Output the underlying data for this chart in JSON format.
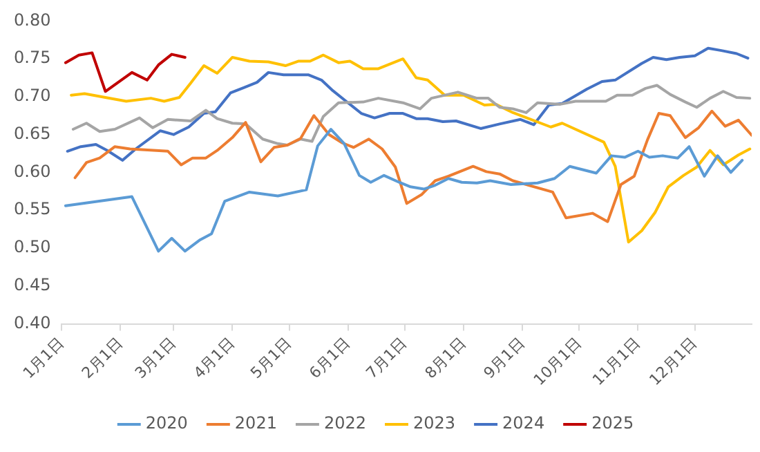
{
  "chart_data": {
    "type": "line",
    "marker": "none",
    "line_style": "solid",
    "grid": false,
    "legend": "bottom",
    "xlim": [
      "--01-01",
      "--12-31"
    ],
    "xticks": [
      {
        "value": "--01-01",
        "label": "1月1日"
      },
      {
        "value": "--02-01",
        "label": "2月1日"
      },
      {
        "value": "--03-01",
        "label": "3月1日"
      },
      {
        "value": "--04-01",
        "label": "4月1日"
      },
      {
        "value": "--05-01",
        "label": "5月1日"
      },
      {
        "value": "--06-01",
        "label": "6月1日"
      },
      {
        "value": "--07-01",
        "label": "7月1日"
      },
      {
        "value": "--08-01",
        "label": "8月1日"
      },
      {
        "value": "--09-01",
        "label": "9月1日"
      },
      {
        "value": "--10-01",
        "label": "10月1日"
      },
      {
        "value": "--11-01",
        "label": "11月1日"
      },
      {
        "value": "--12-01",
        "label": "12月1日"
      }
    ],
    "ylim": [
      0.4,
      0.8
    ],
    "yticks": [
      {
        "value": 0.4,
        "label": "0.40"
      },
      {
        "value": 0.45,
        "label": "0.45"
      },
      {
        "value": 0.5,
        "label": "0.50"
      },
      {
        "value": 0.55,
        "label": "0.55"
      },
      {
        "value": 0.6,
        "label": "0.60"
      },
      {
        "value": 0.65,
        "label": "0.65"
      },
      {
        "value": 0.7,
        "label": "0.70"
      },
      {
        "value": 0.75,
        "label": "0.75"
      },
      {
        "value": 0.8,
        "label": "0.80"
      }
    ],
    "series": [
      {
        "name": "2020",
        "color": "#5b9bd5",
        "x": [
          "--01-03",
          "--02-07",
          "--02-21",
          "--02-28",
          "--03-07",
          "--03-15",
          "--03-21",
          "--03-28",
          "--04-10",
          "--04-25",
          "--05-10",
          "--05-16",
          "--05-23",
          "--05-30",
          "--06-07",
          "--06-13",
          "--06-20",
          "--06-28",
          "--07-04",
          "--07-11",
          "--07-17",
          "--07-24",
          "--07-31",
          "--08-08",
          "--08-15",
          "--08-26",
          "--09-09",
          "--09-18",
          "--09-26",
          "--10-10",
          "--10-18",
          "--10-25",
          "--11-01",
          "--11-07",
          "--11-14",
          "--11-22",
          "--11-28",
          "--12-06",
          "--12-13",
          "--12-20",
          "--12-26"
        ],
        "values": [
          0.556,
          0.568,
          0.496,
          0.513,
          0.496,
          0.511,
          0.519,
          0.562,
          0.574,
          0.569,
          0.577,
          0.635,
          0.657,
          0.638,
          0.596,
          0.587,
          0.596,
          0.587,
          0.581,
          0.578,
          0.583,
          0.592,
          0.587,
          0.586,
          0.589,
          0.584,
          0.586,
          0.592,
          0.608,
          0.599,
          0.622,
          0.62,
          0.628,
          0.62,
          0.622,
          0.619,
          0.634,
          0.595,
          0.622,
          0.6,
          0.616
        ]
      },
      {
        "name": "2021",
        "color": "#ed7d31",
        "x": [
          "--01-08",
          "--01-14",
          "--01-21",
          "--01-29",
          "--02-06",
          "--02-26",
          "--03-05",
          "--03-11",
          "--03-18",
          "--03-24",
          "--04-01",
          "--04-08",
          "--04-16",
          "--04-23",
          "--04-30",
          "--05-07",
          "--05-14",
          "--05-22",
          "--05-29",
          "--06-04",
          "--06-12",
          "--06-19",
          "--06-26",
          "--07-02",
          "--07-10",
          "--07-17",
          "--07-24",
          "--08-06",
          "--08-13",
          "--08-20",
          "--08-27",
          "--09-17",
          "--09-24",
          "--10-08",
          "--10-16",
          "--10-23",
          "--10-30",
          "--11-06",
          "--11-12",
          "--11-18",
          "--11-26",
          "--12-03",
          "--12-10",
          "--12-17",
          "--12-24",
          "--12-31"
        ],
        "values": [
          0.593,
          0.613,
          0.619,
          0.634,
          0.631,
          0.628,
          0.61,
          0.619,
          0.619,
          0.629,
          0.646,
          0.666,
          0.614,
          0.633,
          0.636,
          0.645,
          0.675,
          0.65,
          0.639,
          0.633,
          0.644,
          0.631,
          0.607,
          0.559,
          0.571,
          0.589,
          0.595,
          0.608,
          0.601,
          0.598,
          0.589,
          0.574,
          0.54,
          0.546,
          0.535,
          0.584,
          0.595,
          0.643,
          0.678,
          0.675,
          0.646,
          0.659,
          0.681,
          0.661,
          0.669,
          0.649
        ]
      },
      {
        "name": "2022",
        "color": "#a5a5a5",
        "x": [
          "--01-07",
          "--01-14",
          "--01-21",
          "--01-29",
          "--02-11",
          "--02-18",
          "--02-26",
          "--03-10",
          "--03-18",
          "--03-24",
          "--04-01",
          "--04-08",
          "--04-17",
          "--04-25",
          "--04-30",
          "--05-07",
          "--05-13",
          "--05-19",
          "--05-27",
          "--06-09",
          "--06-17",
          "--06-30",
          "--07-09",
          "--07-15",
          "--07-29",
          "--08-08",
          "--08-14",
          "--08-20",
          "--08-27",
          "--09-03",
          "--09-09",
          "--09-21",
          "--09-29",
          "--10-15",
          "--10-21",
          "--10-29",
          "--11-05",
          "--11-11",
          "--11-18",
          "--11-26",
          "--12-02",
          "--12-09",
          "--12-16",
          "--12-23",
          "--12-30"
        ],
        "values": [
          0.657,
          0.665,
          0.654,
          0.657,
          0.672,
          0.659,
          0.67,
          0.668,
          0.682,
          0.671,
          0.665,
          0.664,
          0.644,
          0.638,
          0.636,
          0.644,
          0.641,
          0.674,
          0.692,
          0.693,
          0.698,
          0.692,
          0.684,
          0.698,
          0.706,
          0.698,
          0.698,
          0.686,
          0.684,
          0.679,
          0.692,
          0.69,
          0.694,
          0.694,
          0.702,
          0.702,
          0.711,
          0.715,
          0.703,
          0.693,
          0.686,
          0.698,
          0.707,
          0.699,
          0.698
        ]
      },
      {
        "name": "2023",
        "color": "#ffc000",
        "x": [
          "--01-06",
          "--01-13",
          "--02-04",
          "--02-17",
          "--02-24",
          "--03-04",
          "--03-10",
          "--03-17",
          "--03-24",
          "--04-01",
          "--04-10",
          "--04-20",
          "--04-29",
          "--05-06",
          "--05-12",
          "--05-19",
          "--05-27",
          "--06-02",
          "--06-09",
          "--06-17",
          "--06-30",
          "--07-07",
          "--07-13",
          "--07-22",
          "--08-01",
          "--08-12",
          "--08-18",
          "--08-27",
          "--09-16",
          "--09-22",
          "--10-14",
          "--10-20",
          "--10-27",
          "--11-03",
          "--11-10",
          "--11-17",
          "--11-25",
          "--12-02",
          "--12-09",
          "--12-16",
          "--12-24",
          "--12-30"
        ],
        "values": [
          0.702,
          0.704,
          0.694,
          0.698,
          0.694,
          0.699,
          0.718,
          0.741,
          0.731,
          0.752,
          0.747,
          0.746,
          0.741,
          0.747,
          0.747,
          0.755,
          0.745,
          0.747,
          0.737,
          0.737,
          0.75,
          0.725,
          0.722,
          0.702,
          0.702,
          0.689,
          0.69,
          0.679,
          0.66,
          0.665,
          0.64,
          0.608,
          0.508,
          0.523,
          0.547,
          0.581,
          0.596,
          0.607,
          0.629,
          0.61,
          0.623,
          0.631
        ]
      },
      {
        "name": "2024",
        "color": "#4472c4",
        "x": [
          "--01-04",
          "--01-11",
          "--01-19",
          "--01-25",
          "--02-02",
          "--02-09",
          "--02-22",
          "--03-01",
          "--03-09",
          "--03-17",
          "--03-23",
          "--03-31",
          "--04-07",
          "--04-14",
          "--04-20",
          "--04-28",
          "--05-11",
          "--05-18",
          "--05-24",
          "--06-01",
          "--06-08",
          "--06-15",
          "--06-23",
          "--06-30",
          "--07-07",
          "--07-13",
          "--07-21",
          "--07-28",
          "--08-10",
          "--08-20",
          "--08-31",
          "--09-07",
          "--09-15",
          "--09-22",
          "--10-05",
          "--10-13",
          "--10-20",
          "--11-03",
          "--11-09",
          "--11-16",
          "--11-23",
          "--12-01",
          "--12-08",
          "--12-15",
          "--12-23",
          "--12-29"
        ],
        "values": [
          0.628,
          0.634,
          0.637,
          0.629,
          0.616,
          0.631,
          0.655,
          0.65,
          0.66,
          0.678,
          0.68,
          0.705,
          0.712,
          0.719,
          0.732,
          0.729,
          0.729,
          0.722,
          0.708,
          0.692,
          0.678,
          0.672,
          0.678,
          0.678,
          0.671,
          0.671,
          0.667,
          0.668,
          0.658,
          0.664,
          0.67,
          0.663,
          0.689,
          0.691,
          0.71,
          0.72,
          0.722,
          0.744,
          0.752,
          0.749,
          0.752,
          0.754,
          0.764,
          0.761,
          0.757,
          0.751
        ]
      },
      {
        "name": "2025",
        "color": "#c00000",
        "x": [
          "--01-03",
          "--01-10",
          "--01-17",
          "--01-24",
          "--02-07",
          "--02-15",
          "--02-21",
          "--02-28",
          "--03-07"
        ],
        "values": [
          0.745,
          0.755,
          0.758,
          0.707,
          0.732,
          0.722,
          0.742,
          0.756,
          0.752
        ]
      }
    ]
  }
}
